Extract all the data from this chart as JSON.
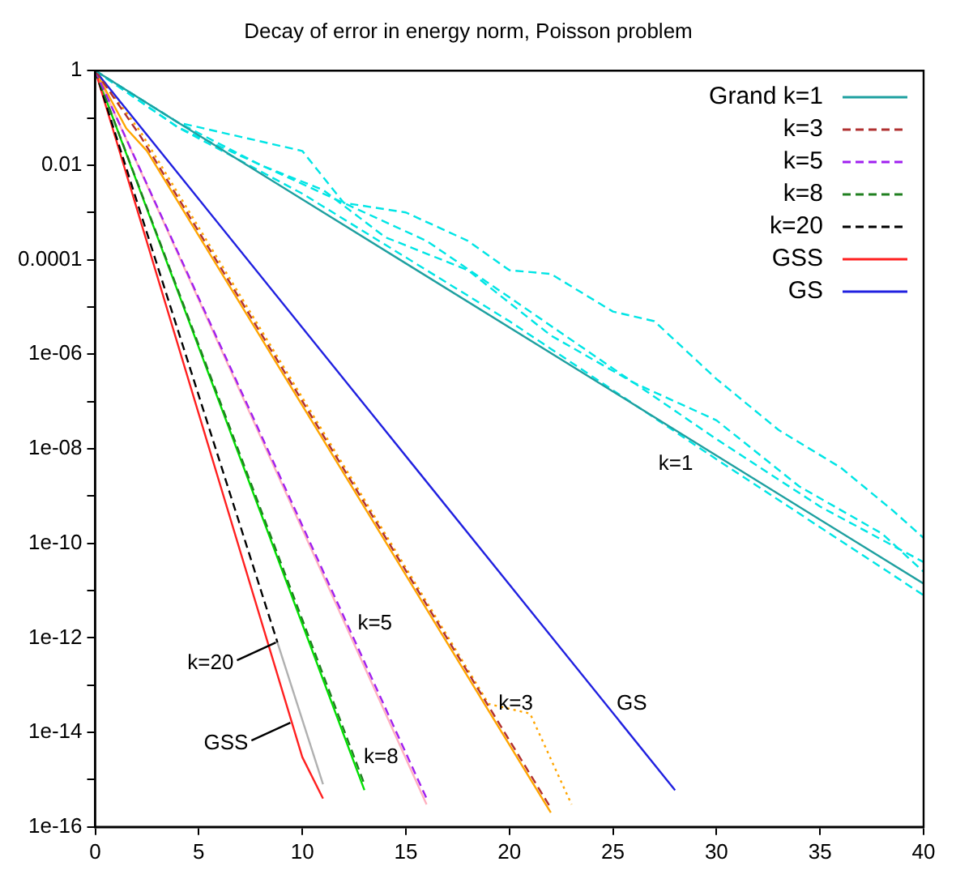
{
  "chart_data": {
    "type": "line",
    "title": "Decay of error in energy norm, Poisson problem",
    "log": "y",
    "grid": false,
    "legend": "top right",
    "marker": "none",
    "xlim": [
      0,
      40
    ],
    "xticks": [
      0,
      5,
      10,
      15,
      20,
      25,
      30,
      35,
      40
    ],
    "ylim": [
      1e-16,
      1
    ],
    "yticks": [
      1,
      {
        "value": 0.1,
        "label": null
      },
      0.01,
      {
        "value": 0.001,
        "label": null
      },
      0.0001,
      {
        "value": 1e-05,
        "label": null
      },
      {
        "value": 1e-06,
        "label": "1e-06"
      },
      {
        "value": 1e-07,
        "label": null
      },
      {
        "value": 1e-08,
        "label": "1e-08"
      },
      {
        "value": 1e-09,
        "label": null
      },
      {
        "value": 1e-10,
        "label": "1e-10"
      },
      {
        "value": 1e-11,
        "label": null
      },
      {
        "value": 1e-12,
        "label": "1e-12"
      },
      {
        "value": 1e-13,
        "label": null
      },
      {
        "value": 1e-14,
        "label": "1e-14"
      },
      {
        "value": 1e-15,
        "label": null
      },
      {
        "value": 1e-16,
        "label": "1e-16"
      }
    ],
    "series": [
      {
        "name": "Grand k=1",
        "color": "#1fa0a0",
        "line_style": "solid",
        "x": [
          0,
          4,
          40
        ],
        "values": [
          1,
          0.08,
          1.4e-11
        ]
      },
      {
        "name": "k=3",
        "color": "#b03030",
        "line_style": "dashed",
        "x": [
          0,
          2.2,
          22
        ],
        "values": [
          1,
          0.04,
          2.5e-16
        ]
      },
      {
        "name": "k=5",
        "color": "#a020f0",
        "line_style": "dashed",
        "x": [
          0,
          16
        ],
        "values": [
          1,
          4e-16
        ]
      },
      {
        "name": "k=8",
        "color": "#208020",
        "line_style": "dashed",
        "x": [
          0,
          13
        ],
        "values": [
          1,
          8e-16
        ]
      },
      {
        "name": "k=20",
        "color": "#000000",
        "line_style": "dashed",
        "x": [
          0,
          8.8
        ],
        "values": [
          1,
          8e-13
        ]
      },
      {
        "name": "GSS",
        "color": "#ff2020",
        "line_style": "solid",
        "x": [
          0,
          10,
          11
        ],
        "values": [
          1,
          3e-15,
          4e-16
        ]
      },
      {
        "name": "GS",
        "color": "#2020e0",
        "line_style": "solid",
        "x": [
          0,
          28
        ],
        "values": [
          1,
          6e-16
        ]
      },
      {
        "color": "#ffa500",
        "line_style": "dotted",
        "x": [
          0,
          2.2,
          19,
          21,
          23
        ],
        "values": [
          1,
          0.05,
          4e-14,
          2.5e-14,
          3e-16
        ]
      },
      {
        "color": "#ffa500",
        "line_style": "solid",
        "x": [
          0,
          1.5,
          2.5,
          22
        ],
        "values": [
          1,
          0.06,
          0.02,
          2e-16
        ]
      },
      {
        "color": "#ffb0c0",
        "line_style": "solid",
        "x": [
          0,
          16
        ],
        "values": [
          1,
          3e-16
        ]
      },
      {
        "color": "#00e000",
        "line_style": "solid",
        "x": [
          0,
          13
        ],
        "values": [
          1,
          6e-16
        ]
      },
      {
        "color": "#b0b0b0",
        "line_style": "solid",
        "x": [
          8.8,
          11
        ],
        "values": [
          8e-13,
          8e-16
        ]
      },
      {
        "color": "#00e5e5",
        "line_style": "dashed",
        "x": [
          0,
          4,
          10,
          12,
          15,
          18,
          20,
          22,
          25,
          27,
          30,
          33,
          36,
          38.5,
          40
        ],
        "values": [
          1,
          0.08,
          0.02,
          0.0016,
          0.001,
          0.00025,
          6e-05,
          5e-05,
          8e-06,
          5e-06,
          3e-07,
          2.5e-08,
          4e-09,
          5e-10,
          1.3e-10
        ]
      },
      {
        "color": "#00e5e5",
        "line_style": "dashed",
        "x": [
          0,
          4,
          10,
          20,
          30,
          40
        ],
        "values": [
          1,
          0.063,
          0.0025,
          5e-06,
          6e-09,
          8e-12
        ]
      },
      {
        "color": "#00e5e5",
        "line_style": "dashed",
        "x": [
          0,
          4,
          10,
          16,
          20,
          25,
          30,
          35,
          40
        ],
        "values": [
          1,
          0.063,
          0.004,
          0.00025,
          1.6e-05,
          5e-07,
          1.6e-08,
          6e-10,
          4e-11
        ]
      },
      {
        "color": "#00e5e5",
        "line_style": "dashed",
        "x": [
          0,
          4,
          8,
          11,
          14,
          18,
          22,
          26,
          30,
          34,
          38,
          40
        ],
        "values": [
          1,
          0.08,
          0.01,
          0.003,
          0.0003,
          6e-05,
          2.5e-06,
          2.5e-07,
          4e-08,
          1.6e-09,
          1.6e-10,
          2.5e-11
        ]
      }
    ],
    "annotations": [
      "k=1",
      {
        "text": "k=5",
        "x": 12.2,
        "y": 2e-12
      },
      {
        "text": "k=8",
        "x": 12.5,
        "y": 3e-15
      },
      {
        "text": "k=3",
        "x": 19,
        "y": 4e-14
      },
      {
        "text": "GS",
        "x": 24.7,
        "y": 4e-14
      },
      {
        "text": "k=20",
        "x": 8.8,
        "y": 8e-13
      },
      {
        "text": "GSS",
        "x": 9.5,
        "y": 1.6e-14
      }
    ]
  }
}
